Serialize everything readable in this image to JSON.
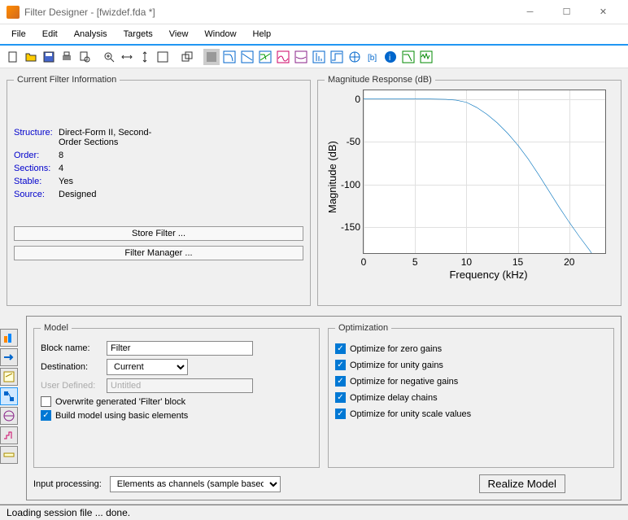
{
  "window": {
    "title": "Filter Designer -  [fwizdef.fda *]"
  },
  "menu": [
    "File",
    "Edit",
    "Analysis",
    "Targets",
    "View",
    "Window",
    "Help"
  ],
  "filterInfo": {
    "legend": "Current Filter Information",
    "structure_label": "Structure:",
    "structure_val": "Direct-Form II, Second-Order Sections",
    "order_label": "Order:",
    "order_val": "8",
    "sections_label": "Sections:",
    "sections_val": "4",
    "stable_label": "Stable:",
    "stable_val": "Yes",
    "source_label": "Source:",
    "source_val": "Designed",
    "store_btn": "Store Filter ...",
    "manager_btn": "Filter Manager ..."
  },
  "chart": {
    "legend": "Magnitude Response (dB)",
    "ylabel": "Magnitude (dB)",
    "xlabel": "Frequency (kHz)",
    "ylim": [
      -180,
      10
    ],
    "ylim_range": 190,
    "yticks": [
      0,
      -50,
      -100,
      -150
    ],
    "xlim": [
      0,
      23.5
    ],
    "xlim_range": 23.5,
    "xticks": [
      0,
      5,
      10,
      15,
      20
    ],
    "line_color": "#0072bd",
    "grid_color": "#e0e0e0",
    "bg": "#ffffff",
    "curve": [
      [
        0,
        0
      ],
      [
        2,
        0
      ],
      [
        4,
        0
      ],
      [
        6,
        0
      ],
      [
        8,
        -0.5
      ],
      [
        9,
        -1.5
      ],
      [
        10,
        -4
      ],
      [
        11,
        -10
      ],
      [
        12,
        -18
      ],
      [
        13,
        -28
      ],
      [
        14,
        -40
      ],
      [
        15,
        -54
      ],
      [
        16,
        -70
      ],
      [
        17,
        -88
      ],
      [
        18,
        -107
      ],
      [
        19,
        -126
      ],
      [
        20,
        -144
      ],
      [
        21,
        -161
      ],
      [
        22,
        -177
      ],
      [
        22.6,
        -188
      ]
    ]
  },
  "model": {
    "legend": "Model",
    "block_label": "Block name:",
    "block_val": "Filter",
    "dest_label": "Destination:",
    "dest_val": "Current",
    "user_label": "User Defined:",
    "user_val": "Untitled",
    "overwrite": "Overwrite generated 'Filter' block",
    "overwrite_checked": false,
    "basic": "Build model using basic elements",
    "basic_checked": true,
    "input_label": "Input processing:",
    "input_val": "Elements as channels (sample based)"
  },
  "opt": {
    "legend": "Optimization",
    "items": [
      "Optimize for zero gains",
      "Optimize for unity gains",
      "Optimize for negative gains",
      "Optimize delay chains",
      "Optimize for unity scale values"
    ]
  },
  "realize_btn": "Realize Model",
  "status": "Loading session file ... done."
}
